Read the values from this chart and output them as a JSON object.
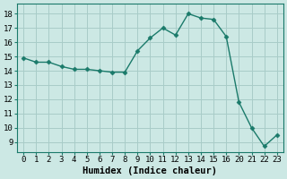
{
  "x_labels": [
    "0",
    "1",
    "2",
    "3",
    "4",
    "5",
    "6",
    "7",
    "8",
    "9",
    "10",
    "11",
    "12",
    "13",
    "14",
    "15",
    "16",
    "20",
    "21",
    "22",
    "23"
  ],
  "y": [
    14.9,
    14.6,
    14.6,
    14.3,
    14.1,
    14.1,
    14.0,
    13.9,
    13.9,
    15.4,
    16.3,
    17.0,
    16.5,
    18.0,
    17.7,
    17.6,
    16.4,
    11.8,
    10.0,
    8.7,
    9.5
  ],
  "line_color": "#1a7a6a",
  "marker_color": "#1a7a6a",
  "bg_color": "#cce8e4",
  "grid_color": "#a8ccc8",
  "xlabel": "Humidex (Indice chaleur)",
  "xlabel_fontsize": 7.5,
  "yticks": [
    9,
    10,
    11,
    12,
    13,
    14,
    15,
    16,
    17,
    18
  ],
  "ylim": [
    8.3,
    18.7
  ],
  "tick_fontsize": 6.5,
  "line_width": 1.0,
  "marker_size": 2.5
}
